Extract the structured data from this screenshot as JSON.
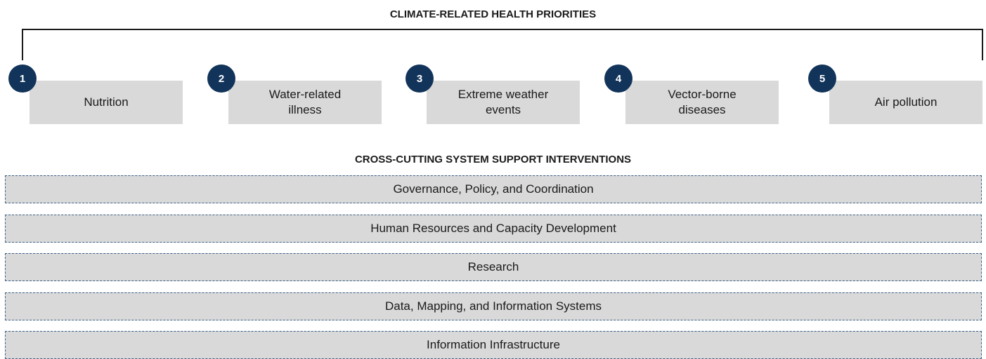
{
  "header": {
    "title": "CLIMATE-RELATED HEALTH PRIORITIES"
  },
  "priorities": [
    {
      "number": "1",
      "label": "Nutrition"
    },
    {
      "number": "2",
      "label": "Water-related illness"
    },
    {
      "number": "3",
      "label": "Extreme weather events"
    },
    {
      "number": "4",
      "label": "Vector-borne diseases"
    },
    {
      "number": "5",
      "label": "Air pollution"
    }
  ],
  "interventions": {
    "title": "CROSS-CUTTING SYSTEM SUPPORT INTERVENTIONS",
    "items": [
      "Governance, Policy, and Coordination",
      "Human Resources and Capacity Development",
      "Research",
      "Data, Mapping, and Information Systems",
      "Information Infrastructure"
    ]
  }
}
